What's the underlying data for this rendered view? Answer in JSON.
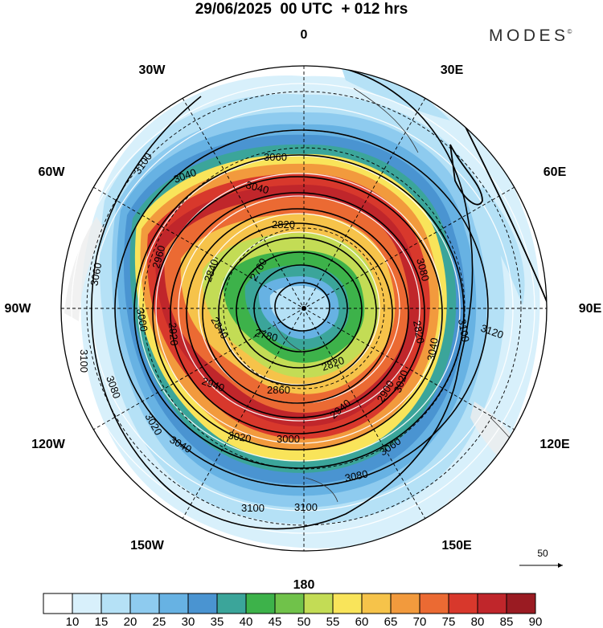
{
  "header": {
    "title": "29/06/2025  00 UTC  + 012 hrs",
    "brand": "MODES",
    "brand_mark": "©"
  },
  "map": {
    "projection": "south-polar-stereographic",
    "longitude_labels": [
      {
        "name": "lon-0",
        "text": "0"
      },
      {
        "name": "lon-30e",
        "text": "30E"
      },
      {
        "name": "lon-60e",
        "text": "60E"
      },
      {
        "name": "lon-90e",
        "text": "90E"
      },
      {
        "name": "lon-120e",
        "text": "120E"
      },
      {
        "name": "lon-150e",
        "text": "150E"
      },
      {
        "name": "lon-180",
        "text": "180"
      },
      {
        "name": "lon-150w",
        "text": "150W"
      },
      {
        "name": "lon-120w",
        "text": "120W"
      },
      {
        "name": "lon-90w",
        "text": "90W"
      },
      {
        "name": "lon-60w",
        "text": "60W"
      },
      {
        "name": "lon-30w",
        "text": "30W"
      }
    ],
    "contour_labels": [
      "3060",
      "3100",
      "3040",
      "3020",
      "2840",
      "2820",
      "2760",
      "2780",
      "3080",
      "3000",
      "2960",
      "2920",
      "2940",
      "2860",
      "2900",
      "3120"
    ],
    "vector_reference": "50"
  },
  "colorbar": {
    "ticks": [
      "10",
      "15",
      "20",
      "25",
      "30",
      "35",
      "40",
      "45",
      "50",
      "55",
      "60",
      "65",
      "70",
      "75",
      "80",
      "85",
      "90"
    ],
    "colors": [
      "#ffffff",
      "#d8f0fb",
      "#b5e1f6",
      "#8ecbef",
      "#67b2e3",
      "#4a94d1",
      "#3ba59a",
      "#3db24a",
      "#70c24a",
      "#c3dc55",
      "#f9e45a",
      "#f6c34a",
      "#f29a3d",
      "#eb6a33",
      "#d8382c",
      "#c0262b",
      "#9a1b22"
    ]
  }
}
